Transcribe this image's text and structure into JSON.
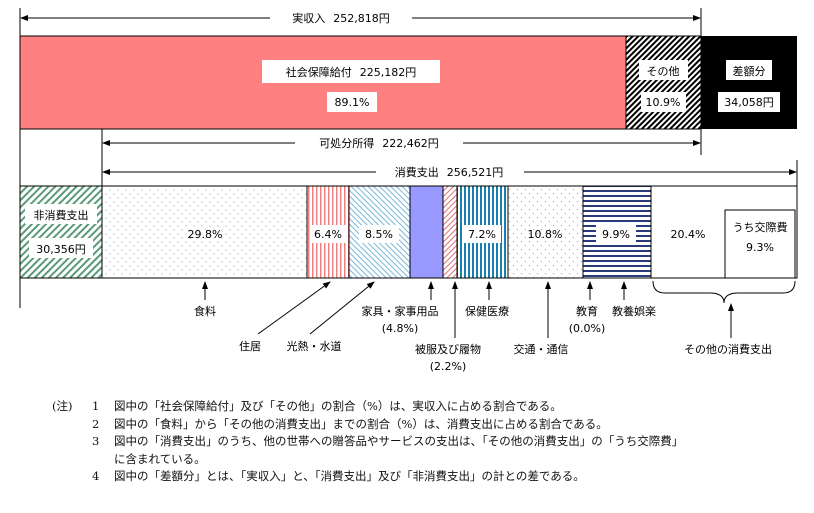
{
  "income": {
    "total_label": "実収入",
    "total_value": "252,818円",
    "social_security": {
      "label": "社会保障給付",
      "value": "225,182円",
      "pct": "89.1%"
    },
    "other": {
      "label": "その他",
      "pct": "10.9%"
    },
    "difference": {
      "label": "差額分",
      "value": "34,058円"
    },
    "disposable_label": "可処分所得",
    "disposable_value": "222,462円"
  },
  "spending": {
    "total_label": "消費支出",
    "total_value": "256,521円",
    "non_consumption": {
      "label": "非消費支出",
      "value": "30,356円"
    },
    "categories": [
      {
        "label": "食料",
        "pct": "29.8%"
      },
      {
        "label": "住居",
        "pct": "6.4%"
      },
      {
        "label": "光熱・水道",
        "pct": "8.5%"
      },
      {
        "label": "家具・家事用品",
        "pct": "(4.8%)"
      },
      {
        "label": "被服及び履物",
        "pct": "(2.2%)"
      },
      {
        "label": "保健医療",
        "pct": "7.2%"
      },
      {
        "label": "交通・通信",
        "pct": "10.8%"
      },
      {
        "label": "教育",
        "pct": "(0.0%)"
      },
      {
        "label": "教養娯楽",
        "pct": "9.9%"
      },
      {
        "label": "その他の消費支出",
        "pct": "20.4%"
      }
    ],
    "social_expenses": {
      "label": "うち交際費",
      "pct": "9.3%"
    }
  },
  "colors": {
    "social_security": "#ff8080",
    "furniture": "#9999ff",
    "difference": "#000000"
  },
  "notes": {
    "head": "(注)",
    "items": [
      {
        "num": "1",
        "text": "図中の「社会保障給付」及び「その他」の割合（%）は、実収入に占める割合である。"
      },
      {
        "num": "2",
        "text": "図中の「食料」から「その他の消費支出」までの割合（%）は、消費支出に占める割合である。"
      },
      {
        "num": "3",
        "text": "図中の「消費支出」のうち、他の世帯への贈答品やサービスの支出は、「その他の消費支出」の「うち交際費」"
      },
      {
        "num": "",
        "text": "に含まれている。"
      },
      {
        "num": "4",
        "text": "図中の「差額分」とは、「実収入」と、「消費支出」及び「非消費支出」の計との差である。"
      }
    ]
  }
}
